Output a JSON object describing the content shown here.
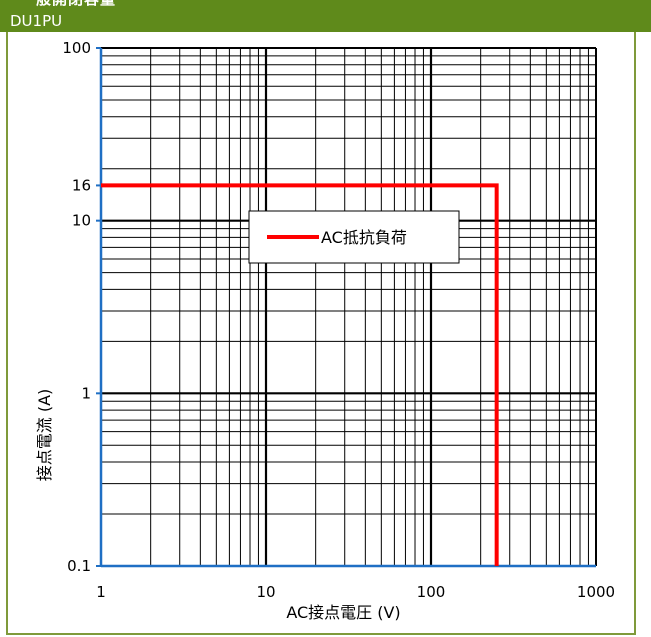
{
  "header": {
    "clipped_title": "一般開閉容量",
    "model": "DU1PU"
  },
  "chart_data": {
    "type": "line",
    "xscale": "log",
    "yscale": "log",
    "xlim": [
      1,
      1000
    ],
    "ylim": [
      0.1,
      100
    ],
    "xlabel": "AC接点電圧 (V)",
    "ylabel": "接点電流 (A)",
    "xticks": [
      {
        "value": 1,
        "label": "1"
      },
      {
        "value": 10,
        "label": "10"
      },
      {
        "value": 100,
        "label": "100"
      },
      {
        "value": 1000,
        "label": "1000"
      }
    ],
    "yticks": [
      {
        "value": 0.1,
        "label": "0.1"
      },
      {
        "value": 1,
        "label": "1"
      },
      {
        "value": 10,
        "label": "10"
      },
      {
        "value": 16,
        "label": "16"
      },
      {
        "value": 100,
        "label": "100"
      }
    ],
    "grid": true,
    "legend_position": "upper-center",
    "series": [
      {
        "name": "AC抵抗負荷",
        "color": "#ff0000",
        "x": [
          1,
          250,
          250
        ],
        "y": [
          16,
          16,
          0.1
        ]
      }
    ]
  }
}
